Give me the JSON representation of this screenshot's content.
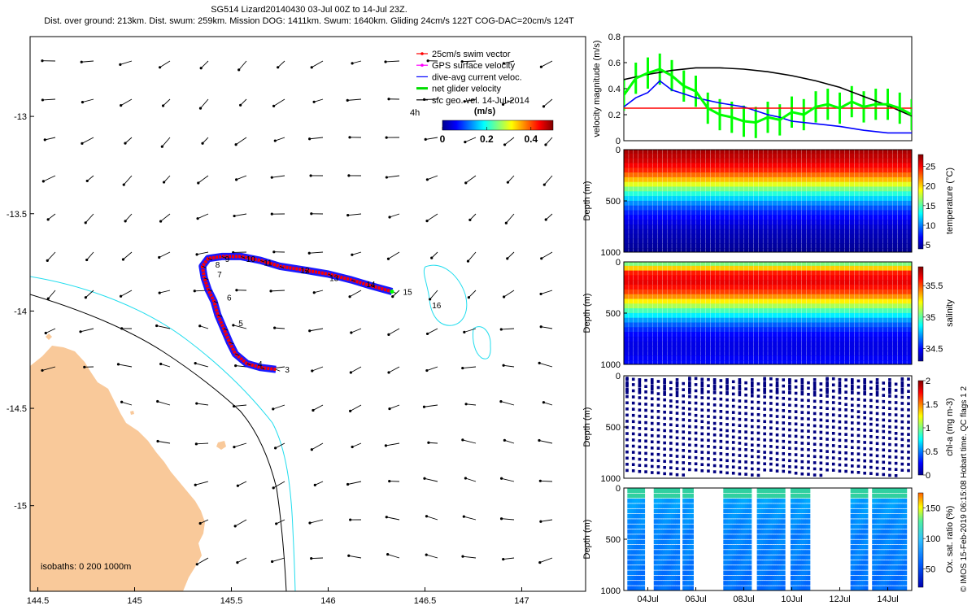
{
  "title_line1": "SG514 Lizard20140430 03-Jul 00Z to 14-Jul 23Z.",
  "title_line2": "Dist. over ground: 213km. Dist. swum: 259km. Mission DOG: 1411km. Swum: 1640km. Gliding 24cm/s 122T COG-DAC=20cm/s 124T",
  "credit": "© IMOS 15-Feb-2019 06:15:08 Hobart time. QC flags 1  2",
  "colors": {
    "land": "#f9c99a",
    "iso200": "#000000",
    "iso1000": "#22ddee",
    "track_red": "#ff0000",
    "track_blue": "#0000ff",
    "net": "#00ff00",
    "avg": "#000000"
  },
  "chart_data": [
    {
      "type": "scatter",
      "name": "map",
      "x_ticks": [
        "144.5",
        "145",
        "145.5",
        "146",
        "146.5",
        "147"
      ],
      "x_tick_values": [
        144.5,
        145,
        145.5,
        146,
        146.5,
        147
      ],
      "y_ticks": [
        "-13",
        "-13.5",
        "-14",
        "-14.5",
        "-15"
      ],
      "y_tick_values": [
        -13,
        -13.5,
        -14,
        -14.5,
        -15
      ],
      "xlim": [
        144.46,
        147.33
      ],
      "ylim": [
        -15.44,
        -12.59
      ],
      "legend": [
        {
          "label": "25cm/s swim vector",
          "color": "#ff0000"
        },
        {
          "label": "GPS surface velocity",
          "color": "#ff00ff"
        },
        {
          "label": "dive-avg current veloc.",
          "color": "#0000ff"
        },
        {
          "label": "net glider velocity",
          "color": "#00dd00"
        },
        {
          "label": "sfc geo. vel. 14-Jul-2014",
          "color": "#000000"
        }
      ],
      "legend_position": "top-right",
      "colorbar": {
        "label": "(m/s)",
        "ticks": [
          "0",
          "0.2",
          "0.4"
        ],
        "tick_values": [
          0,
          0.2,
          0.4
        ],
        "range": [
          0,
          0.5
        ]
      },
      "scale_note": "4h",
      "isobath_note": "isobaths: 0   200  1000m",
      "track": [
        [
          145.73,
          -14.3
        ],
        [
          145.65,
          -14.29
        ],
        [
          145.58,
          -14.27
        ],
        [
          145.52,
          -14.22
        ],
        [
          145.49,
          -14.16
        ],
        [
          145.46,
          -14.09
        ],
        [
          145.43,
          -14.02
        ],
        [
          145.41,
          -13.95
        ],
        [
          145.38,
          -13.89
        ],
        [
          145.36,
          -13.83
        ],
        [
          145.35,
          -13.77
        ],
        [
          145.38,
          -13.73
        ],
        [
          145.45,
          -13.72
        ],
        [
          145.55,
          -13.72
        ],
        [
          145.65,
          -13.74
        ],
        [
          145.75,
          -13.77
        ],
        [
          145.88,
          -13.79
        ],
        [
          146.0,
          -13.81
        ],
        [
          146.12,
          -13.84
        ],
        [
          146.22,
          -13.87
        ],
        [
          146.33,
          -13.9
        ]
      ],
      "dive_labels": [
        {
          "text": "3",
          "lon": 145.76,
          "lat": -14.3
        },
        {
          "text": "4",
          "lon": 145.62,
          "lat": -14.27
        },
        {
          "text": "5",
          "lon": 145.52,
          "lat": -14.06
        },
        {
          "text": "6",
          "lon": 145.46,
          "lat": -13.93
        },
        {
          "text": "7",
          "lon": 145.41,
          "lat": -13.81
        },
        {
          "text": "8",
          "lon": 145.4,
          "lat": -13.76
        },
        {
          "text": "9",
          "lon": 145.45,
          "lat": -13.73
        },
        {
          "text": "10",
          "lon": 145.56,
          "lat": -13.73
        },
        {
          "text": "11",
          "lon": 145.65,
          "lat": -13.75
        },
        {
          "text": "12",
          "lon": 145.84,
          "lat": -13.79
        },
        {
          "text": "13",
          "lon": 145.99,
          "lat": -13.83
        },
        {
          "text": "14",
          "lon": 146.18,
          "lat": -13.86
        },
        {
          "text": "15",
          "lon": 146.37,
          "lat": -13.9
        },
        {
          "text": "16",
          "lon": 146.52,
          "lat": -13.97
        }
      ]
    },
    {
      "type": "line",
      "name": "velocity",
      "ylabel": "velocity magnitude (m/s)",
      "y_ticks": [
        "0",
        "0.2",
        "0.4",
        "0.6",
        "0.8"
      ],
      "y_tick_values": [
        0,
        0.2,
        0.4,
        0.6,
        0.8
      ],
      "ylim": [
        0,
        0.8
      ],
      "xlim": [
        3,
        15
      ],
      "series": [
        {
          "color": "#000000",
          "x": [
            3,
            4,
            5,
            6,
            7,
            8,
            9,
            10,
            11,
            12,
            13,
            14,
            15
          ],
          "values": [
            0.47,
            0.51,
            0.54,
            0.56,
            0.56,
            0.55,
            0.53,
            0.5,
            0.46,
            0.41,
            0.34,
            0.27,
            0.19
          ]
        },
        {
          "color": "#0000ff",
          "x": [
            3,
            3.5,
            4,
            4.5,
            5,
            5.5,
            6,
            7,
            8,
            9,
            9.5,
            10,
            11,
            11.5,
            12,
            13,
            14,
            15
          ],
          "values": [
            0.26,
            0.33,
            0.37,
            0.46,
            0.39,
            0.36,
            0.33,
            0.29,
            0.26,
            0.2,
            0.18,
            0.15,
            0.13,
            0.12,
            0.11,
            0.08,
            0.06,
            0.06
          ]
        },
        {
          "color": "#ff0000",
          "x": [
            3,
            15
          ],
          "values": [
            0.25,
            0.25
          ]
        },
        {
          "color": "#00ff00",
          "x": [
            3,
            3.5,
            4,
            4.5,
            5,
            5.5,
            6,
            6.5,
            7,
            7.5,
            8,
            8.5,
            9,
            9.5,
            10,
            10.5,
            11,
            11.5,
            12,
            12.5,
            13,
            13.5,
            14,
            14.5,
            15
          ],
          "values": [
            0.35,
            0.48,
            0.52,
            0.55,
            0.5,
            0.42,
            0.38,
            0.25,
            0.2,
            0.18,
            0.15,
            0.14,
            0.18,
            0.16,
            0.22,
            0.2,
            0.26,
            0.28,
            0.25,
            0.3,
            0.26,
            0.28,
            0.28,
            0.25,
            0.2
          ]
        }
      ]
    },
    {
      "type": "heatmap",
      "name": "temperature",
      "ylabel": "Depth (m)",
      "y_ticks": [
        "0",
        "500",
        "1000"
      ],
      "y_tick_values": [
        0,
        500,
        1000
      ],
      "ylim": [
        1000,
        0
      ],
      "colorbar_label": "temperature (°C)",
      "colorbar_ticks": [
        "5",
        "10",
        "15",
        "20",
        "25"
      ],
      "colorbar_tick_values": [
        5,
        10,
        15,
        20,
        25
      ],
      "colorbar_range": [
        4,
        28
      ],
      "profile_depths": [
        0,
        100,
        200,
        300,
        400,
        500,
        600,
        700,
        800,
        900,
        1000
      ],
      "profile_values": [
        27,
        26,
        24,
        20,
        15,
        11,
        8,
        6.5,
        5.5,
        5,
        4.5
      ]
    },
    {
      "type": "heatmap",
      "name": "salinity",
      "ylabel": "Depth (m)",
      "y_ticks": [
        "0",
        "500",
        "1000"
      ],
      "y_tick_values": [
        0,
        500,
        1000
      ],
      "ylim": [
        1000,
        0
      ],
      "colorbar_label": "salinity",
      "colorbar_ticks": [
        "34.5",
        "35",
        "35.5"
      ],
      "colorbar_tick_values": [
        34.5,
        35,
        35.5
      ],
      "colorbar_range": [
        34.3,
        35.8
      ],
      "profile_depths": [
        0,
        100,
        200,
        300,
        400,
        500,
        600,
        700,
        800,
        900,
        1000
      ],
      "profile_values": [
        35.05,
        35.6,
        35.65,
        35.5,
        35.2,
        34.9,
        34.65,
        34.5,
        34.45,
        34.45,
        34.5
      ]
    },
    {
      "type": "scatter",
      "name": "chl-a",
      "ylabel": "Depth (m)",
      "y_ticks": [
        "0",
        "500",
        "1000"
      ],
      "y_tick_values": [
        0,
        500,
        1000
      ],
      "ylim": [
        1000,
        0
      ],
      "colorbar_label": "chl-a (mg m-3)",
      "colorbar_ticks": [
        "0",
        "0.5",
        "1",
        "1.5",
        "2"
      ],
      "colorbar_tick_values": [
        0,
        0.5,
        1,
        1.5,
        2
      ],
      "colorbar_range": [
        0,
        2
      ]
    },
    {
      "type": "scatter",
      "name": "oxygen",
      "ylabel": "Depth (m)",
      "y_ticks": [
        "0",
        "500",
        "1000"
      ],
      "y_tick_values": [
        0,
        500,
        1000
      ],
      "ylim": [
        1000,
        0
      ],
      "colorbar_label": "Ox. sat. ratio (%)",
      "colorbar_ticks": [
        "50",
        "100",
        "150"
      ],
      "colorbar_tick_values": [
        50,
        100,
        150
      ],
      "colorbar_range": [
        20,
        175
      ],
      "x_ticks": [
        "04Jul",
        "06Jul",
        "08Jul",
        "10Jul",
        "12Jul",
        "14Jul"
      ],
      "x_tick_values": [
        4,
        6,
        8,
        10,
        12,
        14
      ],
      "xlim": [
        3,
        15
      ],
      "dive_groups": [
        [
          3.2,
          3.9
        ],
        [
          4.3,
          5.3
        ],
        [
          5.5,
          5.9
        ],
        [
          7.2,
          8.3
        ],
        [
          8.6,
          9.7
        ],
        [
          10.0,
          10.8
        ],
        [
          12.5,
          13.2
        ],
        [
          13.4,
          14.8
        ]
      ]
    }
  ]
}
